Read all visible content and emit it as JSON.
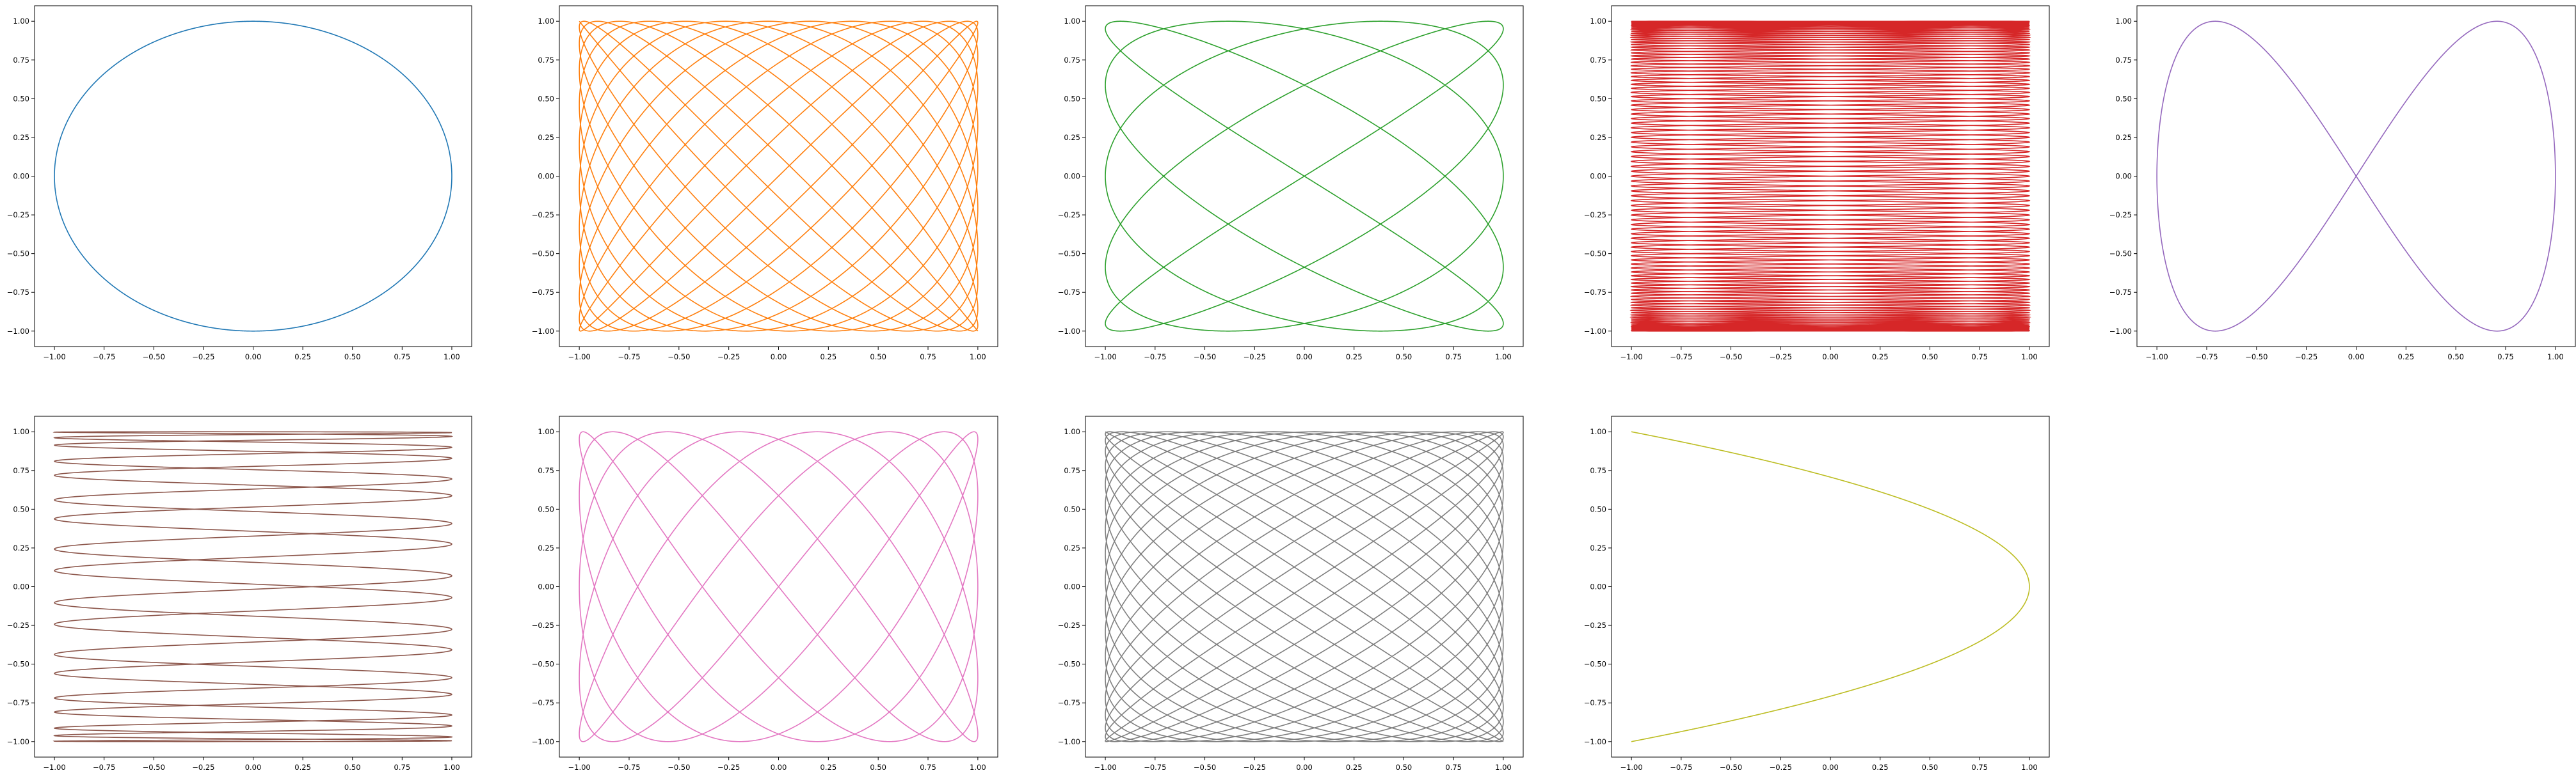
{
  "figure": {
    "layout": "2 rows x 5 columns, last cell empty"
  },
  "chart_data": [
    {
      "type": "line",
      "ax": 1,
      "x_expr": "sin(1*t)",
      "y_expr": "cos(1*t)",
      "x_freq": 1,
      "y_freq": 1,
      "phase": 0,
      "color": "#1f77b4",
      "xlim": [
        -1.1,
        1.1
      ],
      "ylim": [
        -1.1,
        1.1
      ],
      "xticks": [
        "−1.00",
        "−0.75",
        "−0.50",
        "−0.25",
        "0.00",
        "0.25",
        "0.50",
        "0.75",
        "1.00"
      ],
      "yticks": [
        "−1.00",
        "−0.75",
        "−0.50",
        "−0.25",
        "0.00",
        "0.25",
        "0.50",
        "0.75",
        "1.00"
      ],
      "xlabel": "",
      "ylabel": "",
      "title": "",
      "grid": false,
      "legend": "none"
    },
    {
      "type": "line",
      "ax": 2,
      "x_expr": "sin(23*t)",
      "y_expr": "sin(29*t)",
      "x_freq": 23,
      "y_freq": 29,
      "phase": 0,
      "color": "#ff7f0e",
      "xlim": [
        -1.1,
        1.1
      ],
      "ylim": [
        -1.1,
        1.1
      ],
      "xticks": [
        "−1.00",
        "−0.75",
        "−0.50",
        "−0.25",
        "0.00",
        "0.25",
        "0.50",
        "0.75",
        "1.00"
      ],
      "yticks": [
        "−1.00",
        "−0.75",
        "−0.50",
        "−0.25",
        "0.00",
        "0.25",
        "0.50",
        "0.75",
        "1.00"
      ],
      "xlabel": "",
      "ylabel": "",
      "title": "",
      "grid": false,
      "legend": "none"
    },
    {
      "type": "line",
      "ax": 3,
      "x_expr": "sin(5*t)",
      "y_expr": "sin(4*t)",
      "x_freq": 5,
      "y_freq": 4,
      "phase": 0,
      "color": "#2ca02c",
      "xlim": [
        -1.1,
        1.1
      ],
      "ylim": [
        -1.1,
        1.1
      ],
      "xticks": [
        "−1.00",
        "−0.75",
        "−0.50",
        "−0.25",
        "0.00",
        "0.25",
        "0.50",
        "0.75",
        "1.00"
      ],
      "yticks": [
        "−1.00",
        "−0.75",
        "−0.50",
        "−0.25",
        "0.00",
        "0.25",
        "0.50",
        "0.75",
        "1.00"
      ],
      "xlabel": "",
      "ylabel": "",
      "title": "",
      "grid": false,
      "legend": "none"
    },
    {
      "type": "line",
      "ax": 4,
      "x_expr": "sin(99*t)",
      "y_expr": "sin(2*t)",
      "x_freq": 99,
      "y_freq": 2,
      "phase": 0,
      "color": "#d62728",
      "xlim": [
        -1.1,
        1.1
      ],
      "ylim": [
        -1.1,
        1.1
      ],
      "xticks": [
        "−1.00",
        "−0.75",
        "−0.50",
        "−0.25",
        "0.00",
        "0.25",
        "0.50",
        "0.75",
        "1.00"
      ],
      "yticks": [
        "−1.00",
        "−0.75",
        "−0.50",
        "−0.25",
        "0.00",
        "0.25",
        "0.50",
        "0.75",
        "1.00"
      ],
      "xlabel": "",
      "ylabel": "",
      "title": "",
      "grid": false,
      "legend": "none"
    },
    {
      "type": "line",
      "ax": 5,
      "x_expr": "sin(1*t)",
      "y_expr": "sin(2*t)",
      "x_freq": 1,
      "y_freq": 2,
      "phase": 0,
      "color": "#9467bd",
      "xlim": [
        -1.1,
        1.1
      ],
      "ylim": [
        -1.1,
        1.1
      ],
      "xticks": [
        "−1.00",
        "−0.75",
        "−0.50",
        "−0.25",
        "0.00",
        "0.25",
        "0.50",
        "0.75",
        "1.00"
      ],
      "yticks": [
        "−1.00",
        "−0.75",
        "−0.50",
        "−0.25",
        "0.00",
        "0.25",
        "0.50",
        "0.75",
        "1.00"
      ],
      "xlabel": "",
      "ylabel": "",
      "title": "",
      "grid": false,
      "legend": "none"
    },
    {
      "type": "line",
      "ax": 6,
      "x_expr": "sin(54*t)",
      "y_expr": "sin(3*t)",
      "x_freq": 54,
      "y_freq": 3,
      "phase": 0.3,
      "color": "#8c564b",
      "xlim": [
        -1.1,
        1.1
      ],
      "ylim": [
        -1.1,
        1.1
      ],
      "xticks": [
        "−1.00",
        "−0.75",
        "−0.50",
        "−0.25",
        "0.00",
        "0.25",
        "0.50",
        "0.75",
        "1.00"
      ],
      "yticks": [
        "−1.00",
        "−0.75",
        "−0.50",
        "−0.25",
        "0.00",
        "0.25",
        "0.50",
        "0.75",
        "1.00"
      ],
      "xlabel": "",
      "ylabel": "",
      "title": "",
      "grid": false,
      "legend": "none"
    },
    {
      "type": "line",
      "ax": 7,
      "x_expr": "sin(5*t)",
      "y_expr": "sin(8*t)",
      "x_freq": 5,
      "y_freq": 8,
      "phase": 0,
      "color": "#e377c2",
      "xlim": [
        -1.1,
        1.1
      ],
      "ylim": [
        -1.1,
        1.1
      ],
      "xticks": [
        "−1.00",
        "−0.75",
        "−0.50",
        "−0.25",
        "0.00",
        "0.25",
        "0.50",
        "0.75",
        "1.00"
      ],
      "yticks": [
        "−1.00",
        "−0.75",
        "−0.50",
        "−0.25",
        "0.00",
        "0.25",
        "0.50",
        "0.75",
        "1.00"
      ],
      "xlabel": "",
      "ylabel": "",
      "title": "",
      "grid": false,
      "legend": "none"
    },
    {
      "type": "line",
      "ax": 8,
      "x_expr": "sin(37*t)",
      "y_expr": "sin(31*t)",
      "x_freq": 37,
      "y_freq": 31,
      "phase": 0,
      "color": "#7f7f7f",
      "xlim": [
        -1.1,
        1.1
      ],
      "ylim": [
        -1.1,
        1.1
      ],
      "xticks": [
        "−1.00",
        "−0.75",
        "−0.50",
        "−0.25",
        "0.00",
        "0.25",
        "0.50",
        "0.75",
        "1.00"
      ],
      "yticks": [
        "−1.00",
        "−0.75",
        "−0.50",
        "−0.25",
        "0.00",
        "0.25",
        "0.50",
        "0.75",
        "1.00"
      ],
      "xlabel": "",
      "ylabel": "",
      "title": "",
      "grid": false,
      "legend": "none"
    },
    {
      "type": "line",
      "ax": 9,
      "x_expr": "cos(2*t)",
      "y_expr": "sin(t)",
      "x_freq": 2,
      "y_freq": 1,
      "phase": 0,
      "color": "#bcbd22",
      "xlim": [
        -1.1,
        1.1
      ],
      "ylim": [
        -1.1,
        1.1
      ],
      "xticks": [
        "−1.00",
        "−0.75",
        "−0.50",
        "−0.25",
        "0.00",
        "0.25",
        "0.50",
        "0.75",
        "1.00"
      ],
      "yticks": [
        "−1.00",
        "−0.75",
        "−0.50",
        "−0.25",
        "0.00",
        "0.25",
        "0.50",
        "0.75",
        "1.00"
      ],
      "xlabel": "",
      "ylabel": "",
      "title": "",
      "grid": false,
      "legend": "none"
    }
  ]
}
